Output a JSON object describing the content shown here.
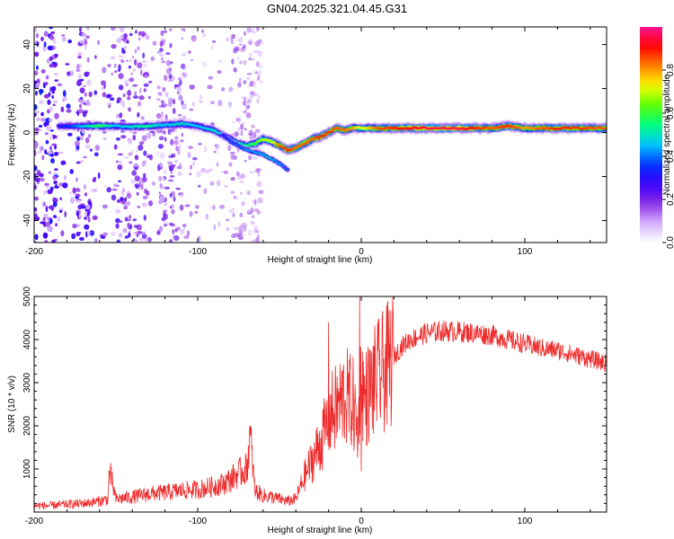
{
  "figure_title": "GN04.2025.321.04.45.G31",
  "colors": {
    "snr_line": "#ee2a2a",
    "colormap": [
      "#ffffff",
      "#d6b0ff",
      "#8a2be2",
      "#3b00ff",
      "#0033ff",
      "#00c8ff",
      "#00ff80",
      "#55ff00",
      "#ffff00",
      "#ff8000",
      "#ff0000",
      "#ff1493"
    ]
  },
  "chart_data": [
    {
      "type": "heatmap",
      "title": "",
      "xlabel": "Height of straight line (km)",
      "ylabel": "Frequency (Hz)",
      "xlim": [
        -200,
        150
      ],
      "ylim": [
        -50,
        48
      ],
      "xticks": [
        -200,
        -100,
        0,
        100
      ],
      "xtick_labels": [
        "-200",
        "-100",
        "0",
        "100"
      ],
      "yticks": [
        40,
        20,
        0,
        -20,
        -40
      ],
      "ytick_labels": [
        "40",
        "20",
        "0",
        "-20",
        "-40"
      ],
      "colorbar": {
        "label": "Normalized spectral amplitude",
        "range": [
          0,
          1
        ],
        "ticks": [
          0.0,
          0.2,
          0.4,
          0.6,
          0.8
        ],
        "tick_labels": [
          "0.0",
          "0.2",
          "0.4",
          "0.6",
          "0.8"
        ]
      },
      "ridge": {
        "x": [
          -185,
          -175,
          -160,
          -150,
          -140,
          -130,
          -120,
          -110,
          -100,
          -90,
          -80,
          -75,
          -70,
          -65,
          -60,
          -55,
          -50,
          -45,
          -40,
          -35,
          -30,
          -25,
          -20,
          -15,
          -10,
          -5,
          0,
          10,
          20,
          40,
          60,
          80,
          90,
          100,
          120,
          150
        ],
        "freq": [
          3,
          3,
          3,
          3,
          2.5,
          3,
          3.5,
          4,
          3,
          1,
          -3,
          -5,
          -6,
          -5,
          -3,
          -4,
          -6,
          -8,
          -7,
          -5,
          -3,
          -2,
          0,
          2,
          1,
          2,
          2,
          2,
          2,
          2,
          2,
          2,
          3,
          2,
          2,
          2
        ],
        "amplitude": [
          0.3,
          0.4,
          0.6,
          0.45,
          0.5,
          0.55,
          0.45,
          0.5,
          0.45,
          0.5,
          0.45,
          0.5,
          0.55,
          0.6,
          0.7,
          0.7,
          0.85,
          0.9,
          0.85,
          0.85,
          0.85,
          0.9,
          0.9,
          0.85,
          0.85,
          0.8,
          0.7,
          0.85,
          0.9,
          0.95,
          0.95,
          0.85,
          0.9,
          0.8,
          0.9,
          0.85
        ]
      },
      "secondary_branch": {
        "x": [
          -85,
          -80,
          -75,
          -70,
          -65,
          -60,
          -55,
          -50,
          -45
        ],
        "freq": [
          -1,
          -4,
          -6,
          -8,
          -9,
          -10,
          -12,
          -14,
          -17
        ],
        "amplitude": [
          0.35,
          0.4,
          0.4,
          0.45,
          0.45,
          0.5,
          0.5,
          0.45,
          0.4
        ]
      },
      "noise": {
        "x_range": [
          -200,
          -60
        ],
        "freq_range": [
          -50,
          48
        ],
        "amplitude_range": [
          0.05,
          0.35
        ],
        "dense_bands_x": [
          -190,
          -170,
          -145,
          -135,
          -120,
          -112,
          -75,
          -65
        ]
      }
    },
    {
      "type": "line",
      "title": "",
      "xlabel": "Height of straight line (km)",
      "ylabel": "SNR (10 * v/v)",
      "xlim": [
        -200,
        150
      ],
      "ylim": [
        0,
        5000
      ],
      "xticks": [
        -200,
        -100,
        0,
        100
      ],
      "xtick_labels": [
        "-200",
        "-100",
        "0",
        "100"
      ],
      "yticks": [
        1000,
        2000,
        3000,
        4000,
        5000
      ],
      "ytick_labels": [
        "1000",
        "2000",
        "3000",
        "4000",
        "5000"
      ],
      "series": [
        {
          "name": "SNR",
          "x": [
            -200,
            -190,
            -180,
            -170,
            -160,
            -155,
            -154,
            -150,
            -140,
            -130,
            -120,
            -110,
            -100,
            -90,
            -85,
            -80,
            -75,
            -70,
            -68,
            -65,
            -60,
            -55,
            -50,
            -45,
            -40,
            -35,
            -30,
            -25,
            -22,
            -20,
            -15,
            -10,
            -5,
            -2,
            0,
            2,
            5,
            10,
            15,
            20,
            25,
            30,
            40,
            50,
            60,
            70,
            80,
            90,
            100,
            110,
            120,
            130,
            140,
            150
          ],
          "values": [
            150,
            150,
            180,
            200,
            250,
            300,
            950,
            300,
            350,
            420,
            450,
            500,
            520,
            600,
            650,
            750,
            900,
            1000,
            1800,
            500,
            380,
            350,
            300,
            250,
            300,
            800,
            1200,
            1600,
            1900,
            2200,
            2400,
            2700,
            2500,
            1800,
            3200,
            2600,
            2800,
            3100,
            3300,
            3600,
            3850,
            4000,
            4150,
            4200,
            4180,
            4150,
            4100,
            4000,
            3900,
            3800,
            3750,
            3650,
            3550,
            3450
          ],
          "spikes": [
            {
              "x": -154,
              "value": 950
            },
            {
              "x": -68,
              "value": 1800
            },
            {
              "x": -20,
              "value": 4400
            },
            {
              "x": -1,
              "value": 5000
            },
            {
              "x": 0,
              "value": 950
            }
          ]
        }
      ]
    }
  ]
}
